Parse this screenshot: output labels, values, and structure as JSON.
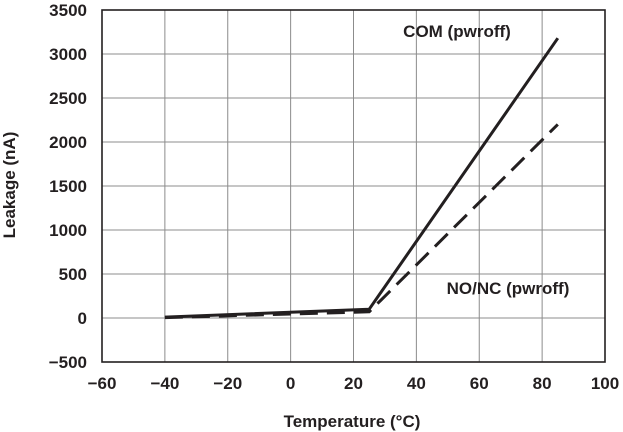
{
  "chart_data": {
    "type": "line",
    "title": "",
    "xlabel": "Temperature (°C)",
    "ylabel": "Leakage (nA)",
    "xlim": [
      -60,
      100
    ],
    "ylim": [
      -500,
      3500
    ],
    "x_ticks": [
      -60,
      -40,
      -20,
      0,
      20,
      40,
      60,
      80,
      100
    ],
    "x_tick_labels": [
      "−60",
      "−40",
      "−20",
      "0",
      "20",
      "40",
      "60",
      "80",
      "100"
    ],
    "y_ticks": [
      -500,
      0,
      500,
      1000,
      1500,
      2000,
      2500,
      3000,
      3500
    ],
    "y_tick_labels": [
      "−500",
      "0",
      "500",
      "1000",
      "1500",
      "2000",
      "2500",
      "3000",
      "3500"
    ],
    "grid": true,
    "series": [
      {
        "name": "COM (pwroff)",
        "style": "solid",
        "color": "#231f20",
        "x": [
          -40,
          25,
          85
        ],
        "y": [
          10,
          100,
          3180
        ]
      },
      {
        "name": "NO/NC (pwroff)",
        "style": "dashed",
        "color": "#231f20",
        "x": [
          -40,
          25,
          85
        ],
        "y": [
          5,
          70,
          2200
        ]
      }
    ],
    "annotations": [
      {
        "text": "COM (pwroff)",
        "series": "COM (pwroff)"
      },
      {
        "text": "NO/NC (pwroff)",
        "series": "NO/NC (pwroff)"
      }
    ]
  }
}
